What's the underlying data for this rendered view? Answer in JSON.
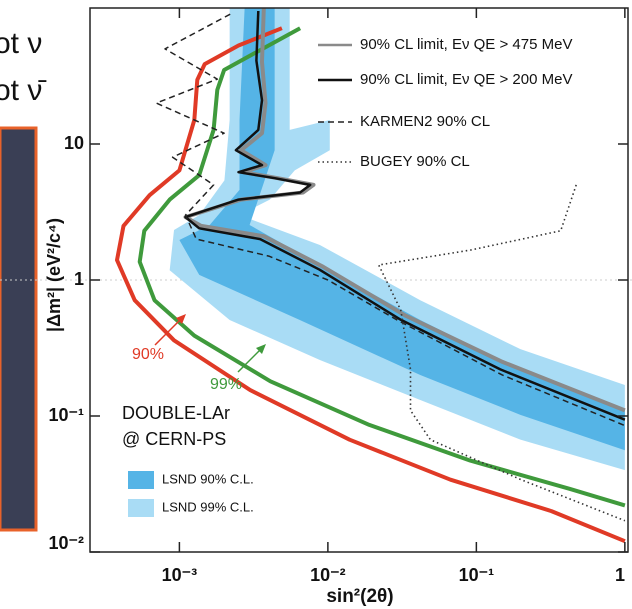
{
  "chart_data": {
    "type": "line",
    "side_text": [
      "ot ν",
      "ot ν̄"
    ],
    "x_label": "sin²(2θ)",
    "y_label": "|Δm²| (eV²/c⁴)",
    "log_x": true,
    "log_y": true,
    "xlim": [
      0.00025,
      1.05
    ],
    "ylim": [
      0.01,
      100
    ],
    "xticks": [
      {
        "value": 0.001,
        "label": "10⁻³"
      },
      {
        "value": 0.01,
        "label": "10⁻²"
      },
      {
        "value": 0.1,
        "label": "10⁻¹"
      },
      1
    ],
    "yticks": [
      {
        "value": 0.01,
        "label": "10⁻²"
      },
      {
        "value": 0.1,
        "label": "10⁻¹"
      },
      1,
      10
    ],
    "annotations": [
      "DOUBLE-LAr",
      "@ CERN-PS"
    ],
    "bands": [
      {
        "name": "LSND 99% C.L.",
        "color": "#a9dcf5",
        "x": [
          0.00218,
          0.00553,
          0.00553,
          0.0103,
          0.0103,
          0.00598,
          0.00406,
          0.00254,
          0.00883,
          0.0419,
          0.198,
          1,
          1,
          0.198,
          0.0419,
          0.00883,
          0.00218,
          0.00086,
          0.00092,
          0.00136,
          0.00201,
          0.00218
        ],
        "y": [
          100,
          100,
          12.7,
          15,
          9.0,
          6.4,
          3.9,
          3.0,
          1.81,
          0.71,
          0.31,
          0.169,
          0.04,
          0.067,
          0.131,
          0.258,
          0.508,
          1.18,
          2.33,
          3.0,
          5.4,
          15
        ]
      },
      {
        "name": "LSND 90% C.L.",
        "color": "#55b4e6",
        "x": [
          0.00275,
          0.00438,
          0.00438,
          0.00347,
          0.00297,
          0.00883,
          0.0419,
          0.198,
          1,
          1,
          0.198,
          0.0419,
          0.00647,
          0.00136,
          0.001,
          0.0016,
          0.00254,
          0.00254
        ],
        "y": [
          100,
          100,
          9.0,
          4.2,
          2.54,
          1.29,
          0.508,
          0.218,
          0.111,
          0.056,
          0.102,
          0.2,
          0.508,
          1.09,
          1.97,
          2.54,
          4.6,
          15
        ]
      }
    ],
    "series": [
      {
        "name": "90%",
        "color": "#e03a26",
        "dash": "none",
        "width": 4,
        "legend": false,
        "x": [
          0.0049,
          0.0025,
          0.00148,
          0.00132,
          0.00126,
          0.001,
          0.00063,
          0.00042,
          0.00038,
          0.0005,
          0.00092,
          0.003,
          0.014,
          0.067,
          0.32,
          1.0
        ],
        "y": [
          71,
          53,
          38.7,
          29.6,
          15,
          6.4,
          4.2,
          2.5,
          1.4,
          0.71,
          0.36,
          0.155,
          0.067,
          0.034,
          0.02,
          0.012
        ]
      },
      {
        "name": "99%",
        "color": "#3f9a3c",
        "dash": "none",
        "width": 4,
        "legend": false,
        "x": [
          0.0065,
          0.0035,
          0.002,
          0.0018,
          0.0017,
          0.00136,
          0.00086,
          0.00058,
          0.00054,
          0.00068,
          0.00126,
          0.0041,
          0.019,
          0.091,
          0.43,
          1.0
        ],
        "y": [
          71,
          49,
          35,
          25,
          12.7,
          5.9,
          3.9,
          2.3,
          1.36,
          0.71,
          0.39,
          0.18,
          0.086,
          0.047,
          0.029,
          0.022
        ]
      },
      {
        "name": "90% CL limit, Eν QE > 475 MeV",
        "color": "#8a8a8a",
        "dash": "none",
        "width": 4,
        "legend": true,
        "x": [
          0.0037,
          0.0036,
          0.0038,
          0.0036,
          0.0026,
          0.0038,
          0.0027,
          0.0046,
          0.008,
          0.0068,
          0.0026,
          0.0011,
          0.0014,
          0.0037,
          0.0093,
          0.033,
          0.15,
          1
        ],
        "y": [
          100,
          40,
          20,
          12,
          9,
          7,
          6.2,
          5.6,
          5,
          4.4,
          3.9,
          2.9,
          2.5,
          2.1,
          1.25,
          0.55,
          0.25,
          0.11
        ]
      },
      {
        "name": "90% CL limit, Eν QE > 200 MeV",
        "color": "#111111",
        "dash": "none",
        "width": 2.5,
        "legend": true,
        "x": [
          0.0034,
          0.0033,
          0.0036,
          0.0034,
          0.0024,
          0.0036,
          0.0025,
          0.0044,
          0.0076,
          0.0065,
          0.0025,
          0.0011,
          0.00136,
          0.0035,
          0.0088,
          0.031,
          0.145,
          1.0
        ],
        "y": [
          95,
          41,
          21,
          12.7,
          9.0,
          7.0,
          6.2,
          5.6,
          5.0,
          4.4,
          3.9,
          2.9,
          2.4,
          2.0,
          1.19,
          0.51,
          0.22,
          0.094
        ]
      },
      {
        "name": "KARMEN2 90% CL",
        "color": "#222222",
        "dash": "6 4",
        "width": 1.5,
        "legend": true,
        "x": [
          0.0022,
          0.0008,
          0.0018,
          0.0007,
          0.002,
          0.0009,
          0.0017,
          0.0011,
          0.0013,
          0.004,
          0.01,
          0.03,
          0.15,
          1
        ],
        "y": [
          90,
          50,
          30,
          20,
          12,
          8,
          5,
          3,
          2,
          1.5,
          1.0,
          0.5,
          0.2,
          0.085
        ]
      },
      {
        "name": "BUGEY 90% CL",
        "color": "#333333",
        "dash": "1.5 3",
        "width": 1.6,
        "legend": true,
        "x": [
          0.47,
          0.37,
          0.091,
          0.022,
          0.031,
          0.036,
          0.036,
          0.049,
          0.2,
          1.0
        ],
        "y": [
          5,
          2.3,
          1.66,
          1.29,
          0.6,
          0.22,
          0.11,
          0.067,
          0.034,
          0.017
        ]
      }
    ]
  }
}
